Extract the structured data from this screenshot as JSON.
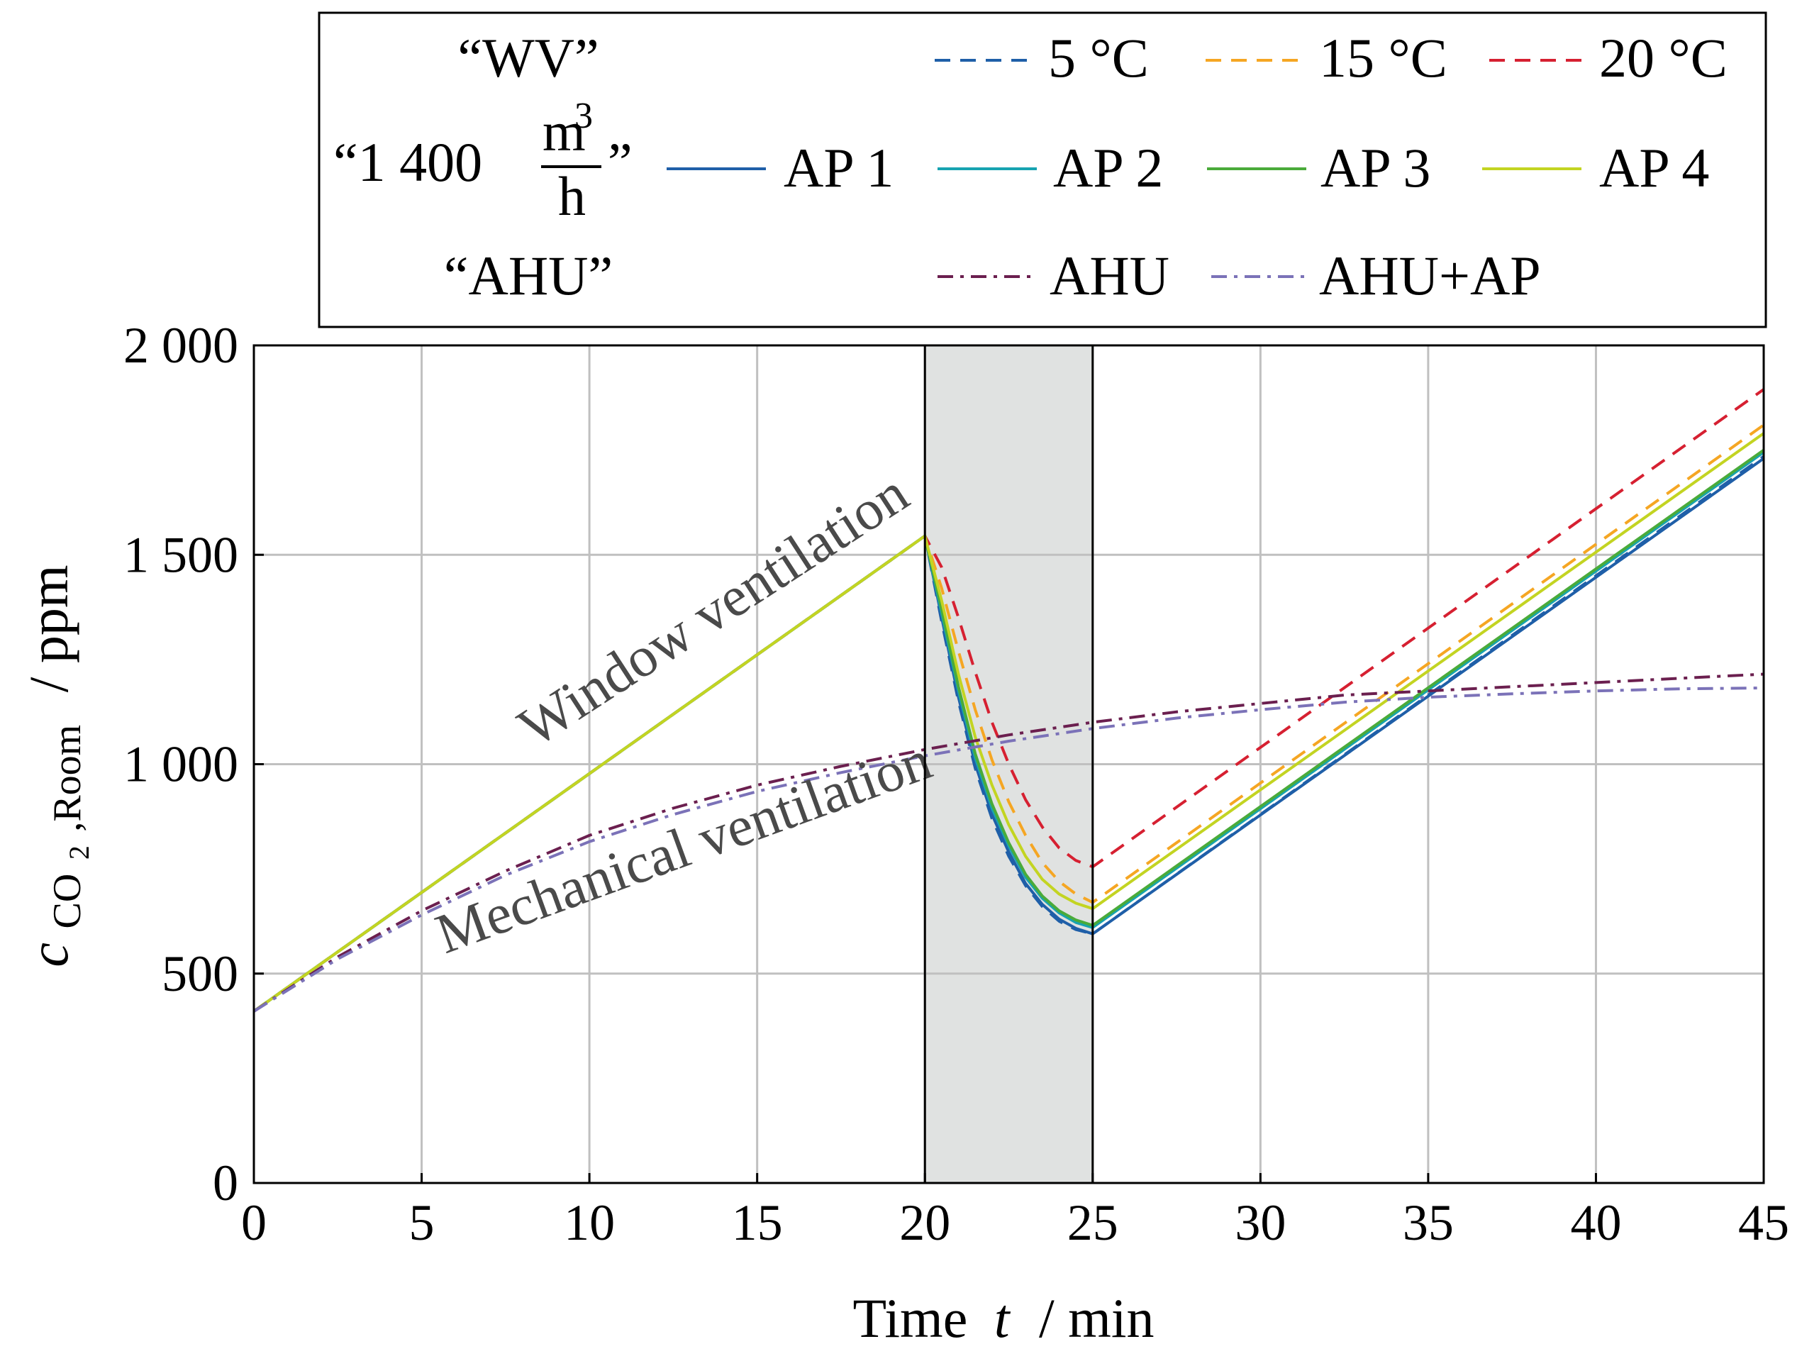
{
  "chart_data": {
    "type": "line",
    "xlabel_text": "Time",
    "xlabel_var": "t",
    "xlabel_unit": "/ min",
    "ylabel_var": "c",
    "ylabel_sub": "CO",
    "ylabel_subsub": "2",
    "ylabel_sub2": ",Room",
    "ylabel_unit": "/ ppm",
    "xlim": [
      0,
      45
    ],
    "ylim": [
      0,
      2000
    ],
    "xticks": [
      0,
      5,
      10,
      15,
      20,
      25,
      30,
      35,
      40,
      45
    ],
    "xtick_labels": [
      "0",
      "5",
      "10",
      "15",
      "20",
      "25",
      "30",
      "35",
      "40",
      "45"
    ],
    "yticks": [
      0,
      500,
      1000,
      1500,
      2000
    ],
    "ytick_labels": [
      "0",
      "500",
      "1 000",
      "1 500",
      "2 000"
    ],
    "grid": true,
    "shaded_region": {
      "x": [
        20,
        25
      ],
      "color": "#e0e2e1"
    },
    "annotations": [
      {
        "text": "Window ventilation",
        "x": 14,
        "y": 1330,
        "angle": -33
      },
      {
        "text": "Mechanical ventilation",
        "x": 13,
        "y": 760,
        "angle": -20
      }
    ],
    "legend": {
      "position": "top",
      "groups": [
        {
          "label": "“WV”",
          "entries": [
            0,
            1,
            2
          ]
        },
        {
          "label_pre": "“1 400 ",
          "label_num": "m",
          "label_num_sup": "3",
          "label_den": "h",
          "label_post": "”",
          "entries": [
            3,
            4,
            5,
            6
          ]
        },
        {
          "label": "“AHU”",
          "entries": [
            7,
            8
          ]
        }
      ]
    },
    "series": [
      {
        "name": "5 °C",
        "color": "#1f5fa8",
        "dash": "22,14",
        "x": [
          0,
          20,
          20.5,
          21,
          21.5,
          22,
          22.5,
          23,
          23.5,
          24,
          24.5,
          25,
          45
        ],
        "y": [
          410,
          1545,
          1340,
          1150,
          990,
          870,
          780,
          710,
          660,
          625,
          605,
          595,
          1735
        ]
      },
      {
        "name": "15 °C",
        "color": "#f5a623",
        "dash": "22,14",
        "x": [
          0,
          20,
          20.5,
          21,
          21.5,
          22,
          22.5,
          23,
          23.5,
          24,
          24.5,
          25,
          45
        ],
        "y": [
          410,
          1545,
          1420,
          1270,
          1130,
          1010,
          910,
          830,
          765,
          720,
          690,
          670,
          1810
        ]
      },
      {
        "name": "20 °C",
        "color": "#d62031",
        "dash": "22,14",
        "x": [
          0,
          20,
          20.5,
          21,
          21.5,
          22,
          22.5,
          23,
          23.5,
          24,
          24.5,
          25,
          45
        ],
        "y": [
          410,
          1545,
          1470,
          1350,
          1220,
          1100,
          1000,
          915,
          850,
          800,
          770,
          755,
          1895
        ]
      },
      {
        "name": "AP 1",
        "color": "#1f5fa8",
        "dash": "",
        "x": [
          0,
          20,
          20.5,
          21,
          21.5,
          22,
          22.5,
          23,
          23.5,
          24,
          24.5,
          25,
          45
        ],
        "y": [
          410,
          1545,
          1350,
          1160,
          1000,
          880,
          790,
          715,
          665,
          630,
          608,
          595,
          1730
        ]
      },
      {
        "name": "AP 2",
        "color": "#17a3b1",
        "dash": "",
        "x": [
          0,
          20,
          20.5,
          21,
          21.5,
          22,
          22.5,
          23,
          23.5,
          24,
          24.5,
          25,
          45
        ],
        "y": [
          410,
          1545,
          1360,
          1175,
          1015,
          895,
          805,
          730,
          680,
          645,
          622,
          610,
          1745
        ]
      },
      {
        "name": "AP 3",
        "color": "#4aab3a",
        "dash": "",
        "x": [
          0,
          20,
          20.5,
          21,
          21.5,
          22,
          22.5,
          23,
          23.5,
          24,
          24.5,
          25,
          45
        ],
        "y": [
          410,
          1545,
          1370,
          1185,
          1025,
          905,
          812,
          737,
          685,
          650,
          628,
          615,
          1750
        ]
      },
      {
        "name": "AP 4",
        "color": "#c3d422",
        "dash": "",
        "x": [
          0,
          20,
          20.5,
          21,
          21.5,
          22,
          22.5,
          23,
          23.5,
          24,
          24.5,
          25,
          45
        ],
        "y": [
          410,
          1545,
          1390,
          1215,
          1065,
          950,
          855,
          780,
          725,
          690,
          668,
          655,
          1790
        ]
      },
      {
        "name": "AHU",
        "color": "#6b1f4f",
        "dash": "22,10,5,10",
        "x": [
          0,
          2.5,
          5,
          7.5,
          10,
          12.5,
          15,
          17.5,
          20,
          22.5,
          25,
          27.5,
          30,
          32.5,
          35,
          37.5,
          40,
          42.5,
          45
        ],
        "y": [
          410,
          540,
          650,
          745,
          830,
          895,
          950,
          995,
          1035,
          1070,
          1100,
          1125,
          1145,
          1165,
          1175,
          1185,
          1195,
          1205,
          1215
        ]
      },
      {
        "name": "AHU+AP",
        "color": "#7b72b8",
        "dash": "22,10,5,10",
        "x": [
          0,
          2.5,
          5,
          7.5,
          10,
          12.5,
          15,
          17.5,
          20,
          22.5,
          25,
          27.5,
          30,
          32.5,
          35,
          37.5,
          40,
          42.5,
          45
        ],
        "y": [
          410,
          535,
          640,
          735,
          815,
          880,
          935,
          980,
          1020,
          1055,
          1085,
          1110,
          1130,
          1148,
          1160,
          1168,
          1175,
          1180,
          1182
        ]
      }
    ]
  }
}
